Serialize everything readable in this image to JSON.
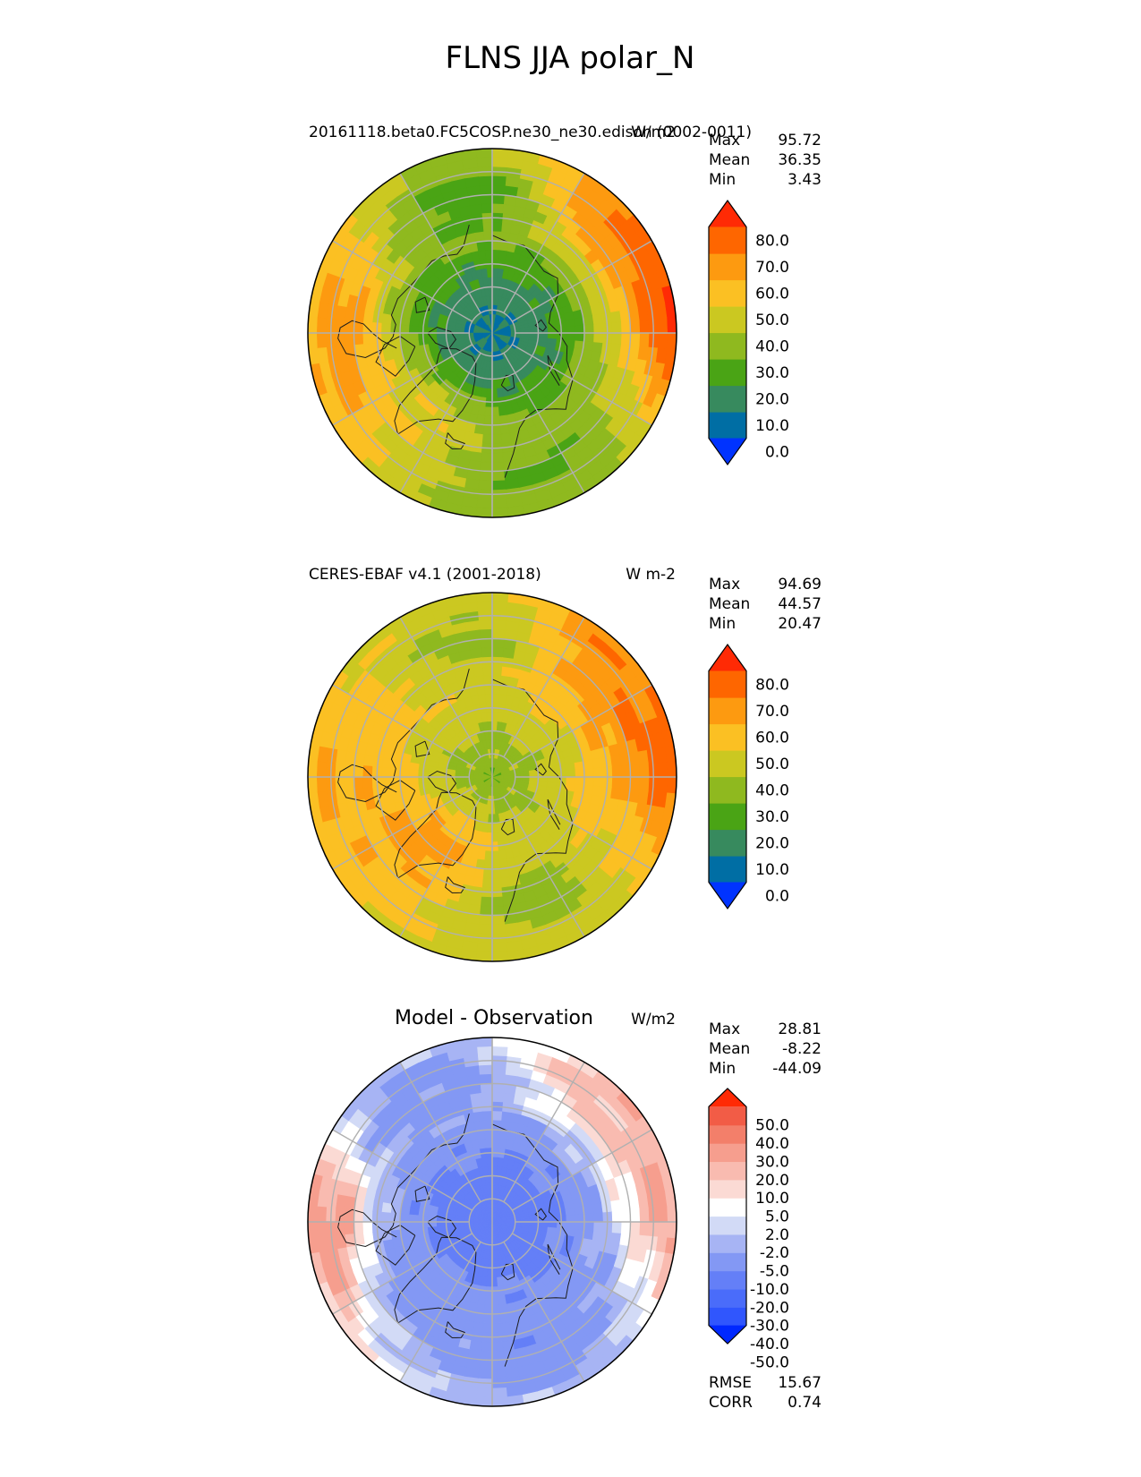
{
  "figure": {
    "title": "FLNS JJA polar_N"
  },
  "colors": {
    "main_levels": [
      "#0033ff",
      "#006ea4",
      "#378a5e",
      "#4aa415",
      "#8fb91f",
      "#cbc821",
      "#fbc023",
      "#fd9a10",
      "#fe6600",
      "#ff2a05"
    ],
    "diff_levels": [
      "#0028ff",
      "#3056fd",
      "#4a6cfa",
      "#647ff7",
      "#8398f4",
      "#a7b4f4",
      "#d2daf6",
      "#ffffff",
      "#fbdad4",
      "#f9bbb0",
      "#f69e8e",
      "#f37f6a",
      "#f25c46",
      "#ff2a05"
    ],
    "grid": "#b0b0b0",
    "coast": "#1c1c1c"
  },
  "chart_data": [
    {
      "type": "heatmap",
      "projection": "north-polar-stereographic",
      "title_left": "20161118.beta0.FC5COSP.ne30_ne30.edison (0002-0011)",
      "title_right": "W/m2",
      "stats": [
        {
          "label": "Max",
          "value": "95.72"
        },
        {
          "label": "Mean",
          "value": "36.35"
        },
        {
          "label": "Min",
          "value": "3.43"
        }
      ],
      "colorbar": {
        "ticks": [
          "80.0",
          "70.0",
          "60.0",
          "50.0",
          "40.0",
          "30.0",
          "20.0",
          "10.0",
          "0.0"
        ],
        "extend": "both"
      },
      "field": {
        "center_value": 8,
        "ring_values": [
          8,
          12,
          20,
          32,
          42,
          46,
          40
        ],
        "lobes": [
          {
            "lon": -90,
            "lat": 55,
            "value": 78
          },
          {
            "lon": 100,
            "lat": 50,
            "value": 86
          },
          {
            "lon": 140,
            "lat": 56,
            "value": 74
          },
          {
            "lon": -40,
            "lat": 66,
            "value": 52
          },
          {
            "lon": -100,
            "lat": 50,
            "value": 58
          },
          {
            "lon": 20,
            "lat": 58,
            "value": 28
          },
          {
            "lon": -170,
            "lat": 60,
            "value": 24
          }
        ]
      }
    },
    {
      "type": "heatmap",
      "projection": "north-polar-stereographic",
      "title_left": "CERES-EBAF v4.1 (2001-2018)",
      "title_right": "W m-2",
      "stats": [
        {
          "label": "Max",
          "value": "94.69"
        },
        {
          "label": "Mean",
          "value": "44.57"
        },
        {
          "label": "Min",
          "value": "20.47"
        }
      ],
      "colorbar": {
        "ticks": [
          "80.0",
          "70.0",
          "60.0",
          "50.0",
          "40.0",
          "30.0",
          "20.0",
          "10.0",
          "0.0"
        ],
        "extend": "both"
      },
      "field": {
        "center_value": 32,
        "ring_values": [
          32,
          38,
          44,
          52,
          56,
          54,
          46
        ],
        "lobes": [
          {
            "lon": 100,
            "lat": 52,
            "value": 76
          },
          {
            "lon": 140,
            "lat": 56,
            "value": 72
          },
          {
            "lon": -40,
            "lat": 70,
            "value": 66
          },
          {
            "lon": -90,
            "lat": 55,
            "value": 60
          },
          {
            "lon": 20,
            "lat": 62,
            "value": 34
          },
          {
            "lon": -170,
            "lat": 60,
            "value": 36
          }
        ]
      }
    },
    {
      "type": "heatmap",
      "projection": "north-polar-stereographic",
      "title_center": "Model - Observation",
      "title_right": "W/m2",
      "stats": [
        {
          "label": "Max",
          "value": "28.81"
        },
        {
          "label": "Mean",
          "value": "-8.22"
        },
        {
          "label": "Min",
          "value": "-44.09"
        }
      ],
      "colorbar": {
        "ticks": [
          "50.0",
          "40.0",
          "30.0",
          "20.0",
          "10.0",
          "5.0",
          "2.0",
          "-2.0",
          "-5.0",
          "-10.0",
          "-20.0",
          "-30.0",
          "-40.0",
          "-50.0"
        ],
        "extend": "both"
      },
      "field": {
        "center_value": -24,
        "ring_values": [
          -24,
          -26,
          -22,
          -14,
          -8,
          -4,
          -2
        ],
        "lobes": [
          {
            "lon": -90,
            "lat": 55,
            "value": 16
          },
          {
            "lon": 100,
            "lat": 52,
            "value": 12
          },
          {
            "lon": 140,
            "lat": 55,
            "value": 8
          },
          {
            "lon": -40,
            "lat": 68,
            "value": -14
          },
          {
            "lon": 20,
            "lat": 60,
            "value": -18
          },
          {
            "lon": -150,
            "lat": 58,
            "value": -14
          }
        ]
      },
      "footer_stats": [
        {
          "label": "RMSE",
          "value": "15.67"
        },
        {
          "label": "CORR",
          "value": "0.74"
        }
      ]
    }
  ]
}
